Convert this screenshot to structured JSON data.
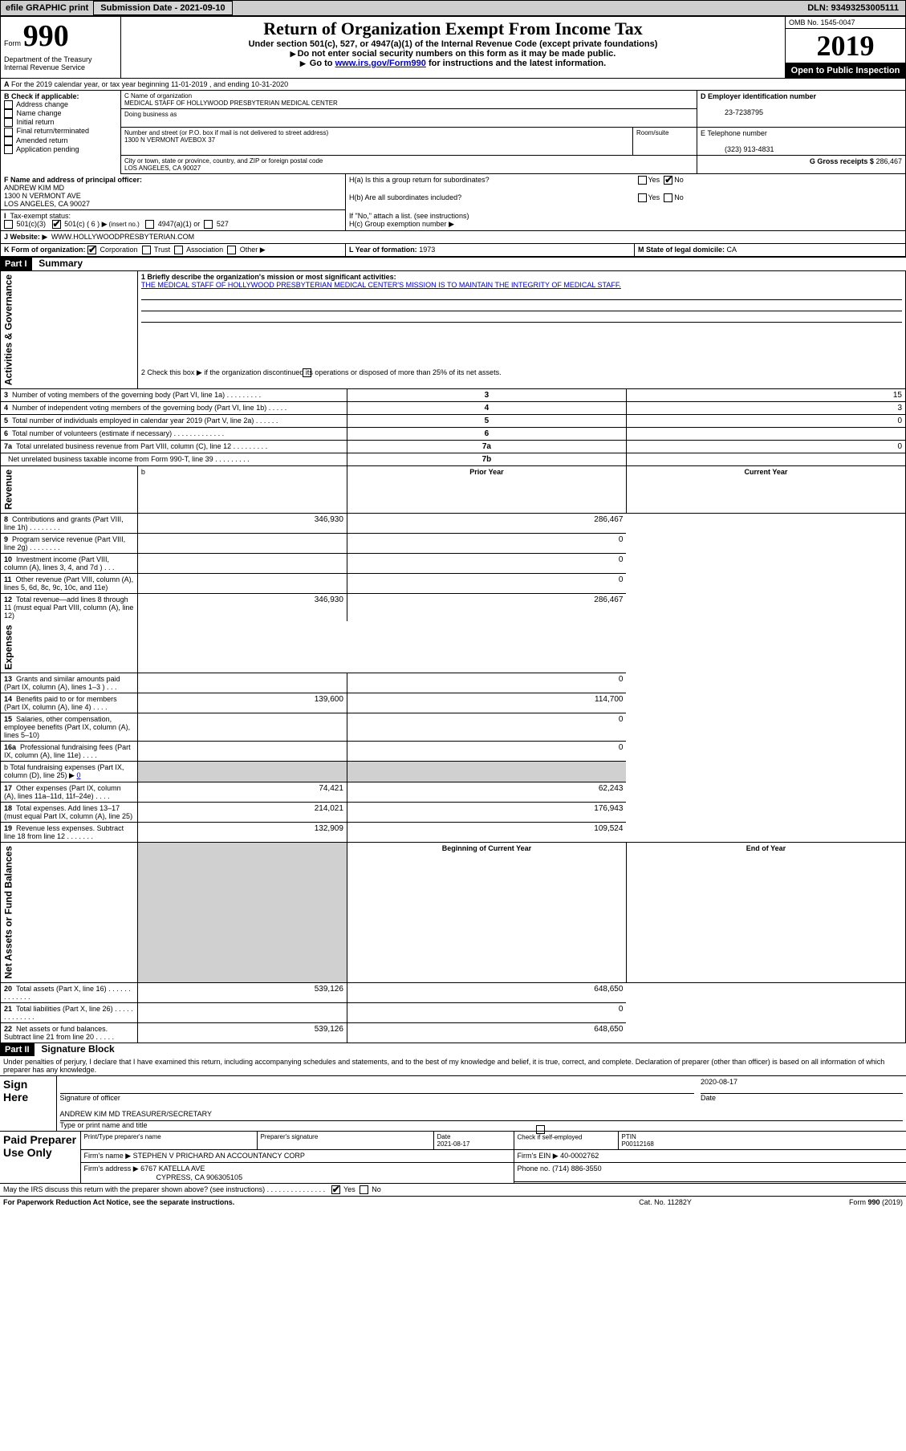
{
  "top_bar": {
    "efile": "efile GRAPHIC print",
    "submission_label": "Submission Date - 2021-09-10",
    "dln": "DLN: 93493253005111"
  },
  "header": {
    "form_prefix": "Form",
    "form_no": "990",
    "dept": "Department of the Treasury Internal Revenue Service",
    "title": "Return of Organization Exempt From Income Tax",
    "sub1": "Under section 501(c), 527, or 4947(a)(1) of the Internal Revenue Code (except private foundations)",
    "sub2": "Do not enter social security numbers on this form as it may be made public.",
    "sub3_prefix": "Go to ",
    "sub3_link": "www.irs.gov/Form990",
    "sub3_suffix": " for instructions and the latest information.",
    "omb": "OMB No. 1545-0047",
    "year": "2019",
    "open": "Open to Public Inspection"
  },
  "line_a": "For the 2019 calendar year, or tax year beginning 11-01-2019    , and ending 10-31-2020",
  "block_b": {
    "label": "B Check if applicable:",
    "items": [
      "Address change",
      "Name change",
      "Initial return",
      "Final return/terminated",
      "Amended return",
      "Application pending"
    ]
  },
  "block_c": {
    "name_label": "C Name of organization",
    "name": "MEDICAL STAFF OF HOLLYWOOD PRESBYTERIAN MEDICAL CENTER",
    "dba_label": "Doing business as",
    "addr_label": "Number and street (or P.O. box if mail is not delivered to street address)",
    "room_label": "Room/suite",
    "addr": "1300 N VERMONT AVEBOX 37",
    "city_label": "City or town, state or province, country, and ZIP or foreign postal code",
    "city": "LOS ANGELES, CA  90027"
  },
  "block_d": {
    "label": "D Employer identification number",
    "val": "23-7238795"
  },
  "block_e": {
    "label": "E Telephone number",
    "val": "(323) 913-4831"
  },
  "block_g": {
    "label": "G Gross receipts $",
    "val": "286,467"
  },
  "block_f": {
    "label": "F  Name and address of principal officer:",
    "name": "ANDREW KIM MD",
    "l1": "1300 N VERMONT AVE",
    "l2": "LOS ANGELES, CA  90027"
  },
  "block_h": {
    "ha": "H(a)  Is this a group return for subordinates?",
    "hb": "H(b)  Are all subordinates included?",
    "hb_note": "If \"No,\" attach a list. (see instructions)",
    "hc": "H(c)  Group exemption number"
  },
  "tax_status": {
    "label": "Tax-exempt status:",
    "opts": [
      "501(c)(3)",
      "501(c) ( 6 )",
      "(insert no.)",
      "4947(a)(1) or",
      "527"
    ]
  },
  "website": {
    "label": "J   Website:",
    "val": "WWW.HOLLYWOODPRESBYTERIAN.COM"
  },
  "line_k": "K Form of organization:",
  "k_opts": [
    "Corporation",
    "Trust",
    "Association",
    "Other"
  ],
  "line_l": {
    "label": "L Year of formation:",
    "val": "1973"
  },
  "line_m": {
    "label": "M State of legal domicile:",
    "val": "CA"
  },
  "part1": {
    "header": "Part I",
    "title": "Summary",
    "q1": "1  Briefly describe the organization's mission or most significant activities:",
    "mission": "THE MEDICAL STAFF OF HOLLYWOOD PRESBYTERIAN MEDICAL CENTER'S MISSION IS TO MAINTAIN THE INTEGRITY OF MEDICAL STAFF.",
    "q2": "2   Check this box ▶        if the organization discontinued its operations or disposed of more than 25% of its net assets.",
    "rows_gov": [
      {
        "n": "3",
        "t": "Number of voting members of the governing body (Part VI, line 1a)   .    .    .    .    .    .    .    .    .",
        "box": "3",
        "v": "15"
      },
      {
        "n": "4",
        "t": "Number of independent voting members of the governing body (Part VI, line 1b)  .    .    .    .    .",
        "box": "4",
        "v": "3"
      },
      {
        "n": "5",
        "t": "Total number of individuals employed in calendar year 2019 (Part V, line 2a)   .    .    .    .    .    .",
        "box": "5",
        "v": "0"
      },
      {
        "n": "6",
        "t": "Total number of volunteers (estimate if necessary)   .    .    .    .    .    .    .    .    .    .    .    .    .",
        "box": "6",
        "v": ""
      },
      {
        "n": "7a",
        "t": "Total unrelated business revenue from Part VIII, column (C), line 12  .    .    .    .    .    .    .    .    .",
        "box": "7a",
        "v": "0"
      },
      {
        "n": "",
        "t": "Net unrelated business taxable income from Form 990-T, line 39   .    .    .    .    .    .    .    .    .",
        "box": "7b",
        "v": ""
      }
    ],
    "col_headers": {
      "b": "b",
      "prior": "Prior Year",
      "current": "Current Year"
    },
    "revenue_rows": [
      {
        "n": "8",
        "t": "Contributions and grants (Part VIII, line 1h)   .    .    .    .    .    .    .    .",
        "p": "346,930",
        "c": "286,467"
      },
      {
        "n": "9",
        "t": "Program service revenue (Part VIII, line 2g)   .    .    .    .    .    .    .    .",
        "p": "",
        "c": "0"
      },
      {
        "n": "10",
        "t": "Investment income (Part VIII, column (A), lines 3, 4, and 7d )   .    .    .",
        "p": "",
        "c": "0"
      },
      {
        "n": "11",
        "t": "Other revenue (Part VIII, column (A), lines 5, 6d, 8c, 9c, 10c, and 11e)",
        "p": "",
        "c": "0"
      },
      {
        "n": "12",
        "t": "Total revenue—add lines 8 through 11 (must equal Part VIII, column (A), line 12)",
        "p": "346,930",
        "c": "286,467"
      }
    ],
    "expense_rows": [
      {
        "n": "13",
        "t": "Grants and similar amounts paid (Part IX, column (A), lines 1–3 )   .    .    .",
        "p": "",
        "c": "0"
      },
      {
        "n": "14",
        "t": "Benefits paid to or for members (Part IX, column (A), line 4)   .    .    .    .",
        "p": "139,600",
        "c": "114,700"
      },
      {
        "n": "15",
        "t": "Salaries, other compensation, employee benefits (Part IX, column (A), lines 5–10)",
        "p": "",
        "c": "0"
      },
      {
        "n": "16a",
        "t": "Professional fundraising fees (Part IX, column (A), line 11e)   .    .    .    .",
        "p": "",
        "c": "0"
      }
    ],
    "line_b": "b   Total fundraising expenses (Part IX, column (D), line 25) ▶",
    "line_b_val": "0",
    "expense_rows2": [
      {
        "n": "17",
        "t": "Other expenses (Part IX, column (A), lines 11a–11d, 11f–24e)   .    .    .    .",
        "p": "74,421",
        "c": "62,243"
      },
      {
        "n": "18",
        "t": "Total expenses. Add lines 13–17 (must equal Part IX, column (A), line 25)",
        "p": "214,021",
        "c": "176,943"
      },
      {
        "n": "19",
        "t": "Revenue less expenses. Subtract line 18 from line 12   .    .    .    .    .    .    .",
        "p": "132,909",
        "c": "109,524"
      }
    ],
    "na_headers": {
      "begin": "Beginning of Current Year",
      "end": "End of Year"
    },
    "na_rows": [
      {
        "n": "20",
        "t": "Total assets (Part X, line 16)   .    .    .    .    .    .    .    .    .    .    .    .    .",
        "p": "539,126",
        "c": "648,650"
      },
      {
        "n": "21",
        "t": "Total liabilities (Part X, line 26)   .    .    .    .    .    .    .    .    .    .    .    .    .",
        "p": "",
        "c": "0"
      },
      {
        "n": "22",
        "t": "Net assets or fund balances. Subtract line 21 from line 20  .    .    .    .    .",
        "p": "539,126",
        "c": "648,650"
      }
    ]
  },
  "side_labels": {
    "gov": "Activities & Governance",
    "rev": "Revenue",
    "exp": "Expenses",
    "na": "Net Assets or Fund Balances"
  },
  "part2": {
    "header": "Part II",
    "title": "Signature Block",
    "declaration": "Under penalties of perjury, I declare that I have examined this return, including accompanying schedules and statements, and to the best of my knowledge and belief, it is true, correct, and complete. Declaration of preparer (other than officer) is based on all information of which preparer has any knowledge.",
    "sign_here": "Sign Here",
    "sig_officer": "Signature of officer",
    "sig_date_label": "Date",
    "sig_date": "2020-08-17",
    "officer_name": "ANDREW KIM MD  TREASURER/SECRETARY",
    "type_name": "Type or print name and title",
    "paid": "Paid Preparer Use Only",
    "prep_name_label": "Print/Type preparer's name",
    "prep_sig_label": "Preparer's signature",
    "prep_date_label": "Date",
    "prep_date": "2021-08-17",
    "check_if": "Check          if self-employed",
    "ptin_label": "PTIN",
    "ptin": "P00112168",
    "firm_name_label": "Firm's name   ▶",
    "firm_name": "STEPHEN V PRICHARD AN ACCOUNTANCY CORP",
    "firm_ein_label": "Firm's EIN ▶",
    "firm_ein": "40-0002762",
    "firm_addr_label": "Firm's address ▶",
    "firm_addr1": "6767 KATELLA AVE",
    "firm_addr2": "CYPRESS, CA  906305105",
    "phone_label": "Phone no.",
    "phone": "(714) 886-3550",
    "discuss": "May the IRS discuss this return with the preparer shown above? (see instructions)   .    .    .    .    .    .    .    .    .    .    .    .    .    .    ."
  },
  "footer": {
    "left": "For Paperwork Reduction Act Notice, see the separate instructions.",
    "mid": "Cat. No. 11282Y",
    "right": "Form 990 (2019)"
  },
  "yesno": {
    "yes": "Yes",
    "no": "No"
  }
}
